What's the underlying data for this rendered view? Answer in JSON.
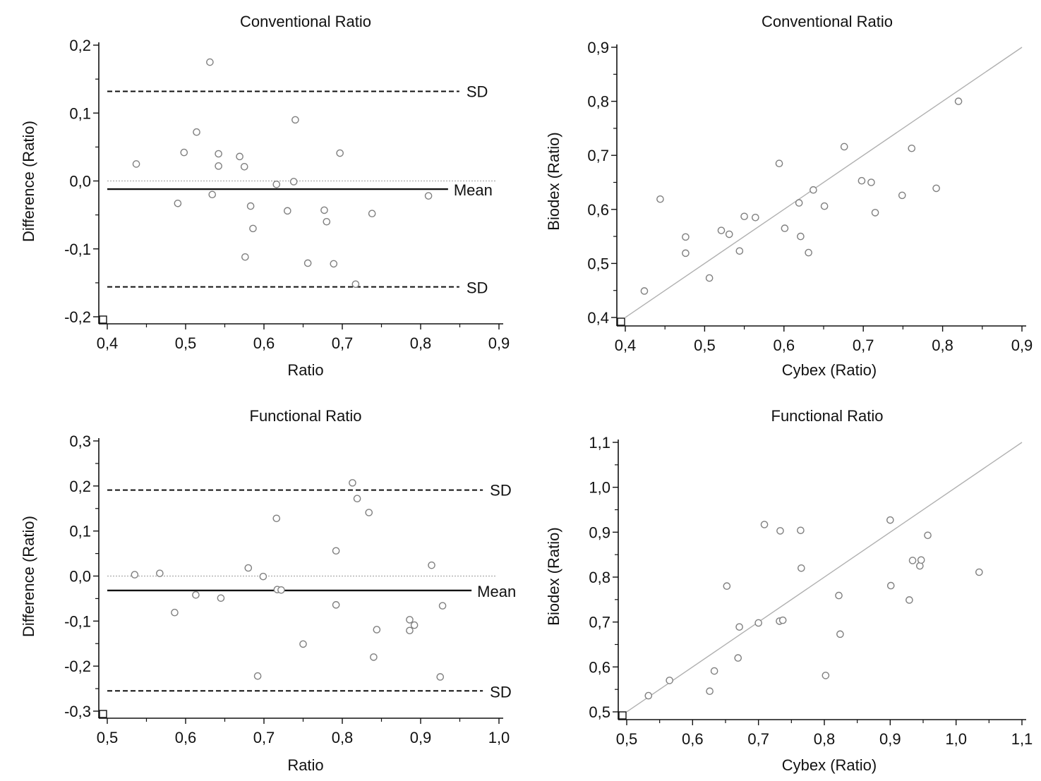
{
  "figure": {
    "panels": 4,
    "background": "#ffffff",
    "axis_color": "#111111",
    "point_edge_color": "#808080",
    "reference_line_color": "#b0b0b0"
  },
  "chart_data": [
    {
      "type": "scatter",
      "variant": "bland-altman",
      "title": "Conventional Ratio",
      "xlabel": "Ratio",
      "ylabel": "Difference (Ratio)",
      "xlim": [
        0.4,
        0.9
      ],
      "ylim": [
        -0.2,
        0.2
      ],
      "xticks": [
        0.4,
        0.5,
        0.6,
        0.7,
        0.8,
        0.9
      ],
      "xtick_labels": [
        "0,4",
        "0,5",
        "0,6",
        "0,7",
        "0,8",
        "0,9"
      ],
      "yticks": [
        -0.2,
        -0.1,
        0.0,
        0.1,
        0.2
      ],
      "ytick_labels": [
        "-0,2",
        "-0,1",
        "0,0",
        "0,1",
        "0,2"
      ],
      "points": [
        {
          "x": 0.437,
          "y": 0.025
        },
        {
          "x": 0.49,
          "y": -0.033
        },
        {
          "x": 0.498,
          "y": 0.042
        },
        {
          "x": 0.514,
          "y": 0.072
        },
        {
          "x": 0.531,
          "y": 0.175
        },
        {
          "x": 0.534,
          "y": -0.02
        },
        {
          "x": 0.542,
          "y": 0.04
        },
        {
          "x": 0.542,
          "y": 0.022
        },
        {
          "x": 0.569,
          "y": 0.036
        },
        {
          "x": 0.575,
          "y": 0.021
        },
        {
          "x": 0.576,
          "y": -0.112
        },
        {
          "x": 0.583,
          "y": -0.037
        },
        {
          "x": 0.586,
          "y": -0.07
        },
        {
          "x": 0.616,
          "y": -0.005
        },
        {
          "x": 0.63,
          "y": -0.044
        },
        {
          "x": 0.638,
          "y": -0.001
        },
        {
          "x": 0.64,
          "y": 0.09
        },
        {
          "x": 0.656,
          "y": -0.121
        },
        {
          "x": 0.677,
          "y": -0.043
        },
        {
          "x": 0.68,
          "y": -0.06
        },
        {
          "x": 0.689,
          "y": -0.122
        },
        {
          "x": 0.697,
          "y": 0.041
        },
        {
          "x": 0.717,
          "y": -0.152
        },
        {
          "x": 0.738,
          "y": -0.048
        },
        {
          "x": 0.81,
          "y": -0.022
        }
      ],
      "zero_line": 0.0,
      "mean": {
        "value": -0.012,
        "label": "Mean"
      },
      "sd_upper": {
        "value": 0.132,
        "label": "SD"
      },
      "sd_lower": {
        "value": -0.156,
        "label": "SD"
      },
      "line_x_range": [
        0.4,
        0.835
      ]
    },
    {
      "type": "scatter",
      "variant": "agreement",
      "title": "Conventional Ratio",
      "xlabel": "Cybex (Ratio)",
      "ylabel": "Biodex (Ratio)",
      "xlim": [
        0.4,
        0.9
      ],
      "ylim": [
        0.4,
        0.9
      ],
      "xticks": [
        0.4,
        0.5,
        0.6,
        0.7,
        0.8,
        0.9
      ],
      "xtick_labels": [
        "0,4",
        "0,5",
        "0,6",
        "0,7",
        "0,8",
        "0,9"
      ],
      "yticks": [
        0.4,
        0.5,
        0.6,
        0.7,
        0.8,
        0.9
      ],
      "ytick_labels": [
        "0,4",
        "0,5",
        "0,6",
        "0,7",
        "0,8",
        "0,9"
      ],
      "points": [
        {
          "x": 0.424,
          "y": 0.449
        },
        {
          "x": 0.444,
          "y": 0.619
        },
        {
          "x": 0.476,
          "y": 0.549
        },
        {
          "x": 0.476,
          "y": 0.519
        },
        {
          "x": 0.506,
          "y": 0.473
        },
        {
          "x": 0.521,
          "y": 0.561
        },
        {
          "x": 0.531,
          "y": 0.554
        },
        {
          "x": 0.544,
          "y": 0.523
        },
        {
          "x": 0.55,
          "y": 0.587
        },
        {
          "x": 0.564,
          "y": 0.585
        },
        {
          "x": 0.594,
          "y": 0.685
        },
        {
          "x": 0.601,
          "y": 0.565
        },
        {
          "x": 0.619,
          "y": 0.612
        },
        {
          "x": 0.621,
          "y": 0.55
        },
        {
          "x": 0.631,
          "y": 0.52
        },
        {
          "x": 0.637,
          "y": 0.636
        },
        {
          "x": 0.651,
          "y": 0.606
        },
        {
          "x": 0.676,
          "y": 0.716
        },
        {
          "x": 0.698,
          "y": 0.653
        },
        {
          "x": 0.71,
          "y": 0.65
        },
        {
          "x": 0.715,
          "y": 0.594
        },
        {
          "x": 0.749,
          "y": 0.626
        },
        {
          "x": 0.761,
          "y": 0.713
        },
        {
          "x": 0.792,
          "y": 0.639
        },
        {
          "x": 0.82,
          "y": 0.8
        }
      ],
      "identity_line": [
        [
          0.4,
          0.4
        ],
        [
          0.9,
          0.9
        ]
      ]
    },
    {
      "type": "scatter",
      "variant": "bland-altman",
      "title": "Functional Ratio",
      "xlabel": "Ratio",
      "ylabel": "Difference (Ratio)",
      "xlim": [
        0.5,
        1.0
      ],
      "ylim": [
        -0.3,
        0.3
      ],
      "xticks": [
        0.5,
        0.6,
        0.7,
        0.8,
        0.9,
        1.0
      ],
      "xtick_labels": [
        "0,5",
        "0,6",
        "0,7",
        "0,8",
        "0,9",
        "1,0"
      ],
      "yticks": [
        -0.3,
        -0.2,
        -0.1,
        0.0,
        0.1,
        0.2,
        0.3
      ],
      "ytick_labels": [
        "-0,3",
        "-0,2",
        "-0,1",
        "0,0",
        "0,1",
        "0,2",
        "0,3"
      ],
      "points": [
        {
          "x": 0.535,
          "y": 0.003
        },
        {
          "x": 0.567,
          "y": 0.006
        },
        {
          "x": 0.586,
          "y": -0.081
        },
        {
          "x": 0.613,
          "y": -0.042
        },
        {
          "x": 0.645,
          "y": -0.049
        },
        {
          "x": 0.68,
          "y": 0.018
        },
        {
          "x": 0.692,
          "y": -0.222
        },
        {
          "x": 0.699,
          "y": -0.001
        },
        {
          "x": 0.716,
          "y": 0.128
        },
        {
          "x": 0.717,
          "y": -0.03
        },
        {
          "x": 0.722,
          "y": -0.031
        },
        {
          "x": 0.75,
          "y": -0.151
        },
        {
          "x": 0.792,
          "y": 0.056
        },
        {
          "x": 0.792,
          "y": -0.064
        },
        {
          "x": 0.813,
          "y": 0.207
        },
        {
          "x": 0.819,
          "y": 0.172
        },
        {
          "x": 0.834,
          "y": 0.141
        },
        {
          "x": 0.84,
          "y": -0.18
        },
        {
          "x": 0.844,
          "y": -0.119
        },
        {
          "x": 0.886,
          "y": -0.097
        },
        {
          "x": 0.886,
          "y": -0.121
        },
        {
          "x": 0.892,
          "y": -0.109
        },
        {
          "x": 0.914,
          "y": 0.024
        },
        {
          "x": 0.925,
          "y": -0.224
        },
        {
          "x": 0.928,
          "y": -0.066
        }
      ],
      "zero_line": 0.0,
      "mean": {
        "value": -0.032,
        "label": "Mean"
      },
      "sd_upper": {
        "value": 0.191,
        "label": "SD"
      },
      "sd_lower": {
        "value": -0.255,
        "label": "SD"
      },
      "line_x_range": [
        0.5,
        0.965
      ]
    },
    {
      "type": "scatter",
      "variant": "agreement",
      "title": "Functional Ratio",
      "xlabel": "Cybex (Ratio)",
      "ylabel": "Biodex (Ratio)",
      "xlim": [
        0.5,
        1.1
      ],
      "ylim": [
        0.5,
        1.1
      ],
      "xticks": [
        0.5,
        0.6,
        0.7,
        0.8,
        0.9,
        1.0,
        1.1
      ],
      "xtick_labels": [
        "0,5",
        "0,6",
        "0,7",
        "0,8",
        "0,9",
        "1,0",
        "1,1"
      ],
      "yticks": [
        0.5,
        0.6,
        0.7,
        0.8,
        0.9,
        1.0,
        1.1
      ],
      "ytick_labels": [
        "0,5",
        "0,6",
        "0,7",
        "0,8",
        "0,9",
        "1,0",
        "1,1"
      ],
      "points": [
        {
          "x": 0.533,
          "y": 0.536
        },
        {
          "x": 0.565,
          "y": 0.57
        },
        {
          "x": 0.626,
          "y": 0.546
        },
        {
          "x": 0.633,
          "y": 0.591
        },
        {
          "x": 0.652,
          "y": 0.78
        },
        {
          "x": 0.669,
          "y": 0.62
        },
        {
          "x": 0.671,
          "y": 0.689
        },
        {
          "x": 0.7,
          "y": 0.698
        },
        {
          "x": 0.709,
          "y": 0.917
        },
        {
          "x": 0.732,
          "y": 0.702
        },
        {
          "x": 0.733,
          "y": 0.903
        },
        {
          "x": 0.737,
          "y": 0.704
        },
        {
          "x": 0.764,
          "y": 0.904
        },
        {
          "x": 0.765,
          "y": 0.82
        },
        {
          "x": 0.802,
          "y": 0.581
        },
        {
          "x": 0.822,
          "y": 0.759
        },
        {
          "x": 0.824,
          "y": 0.673
        },
        {
          "x": 0.9,
          "y": 0.927
        },
        {
          "x": 0.901,
          "y": 0.781
        },
        {
          "x": 0.929,
          "y": 0.749
        },
        {
          "x": 0.934,
          "y": 0.837
        },
        {
          "x": 0.945,
          "y": 0.825
        },
        {
          "x": 0.947,
          "y": 0.838
        },
        {
          "x": 0.957,
          "y": 0.893
        },
        {
          "x": 1.035,
          "y": 0.811
        }
      ],
      "identity_line": [
        [
          0.5,
          0.5
        ],
        [
          1.1,
          1.1
        ]
      ]
    }
  ]
}
